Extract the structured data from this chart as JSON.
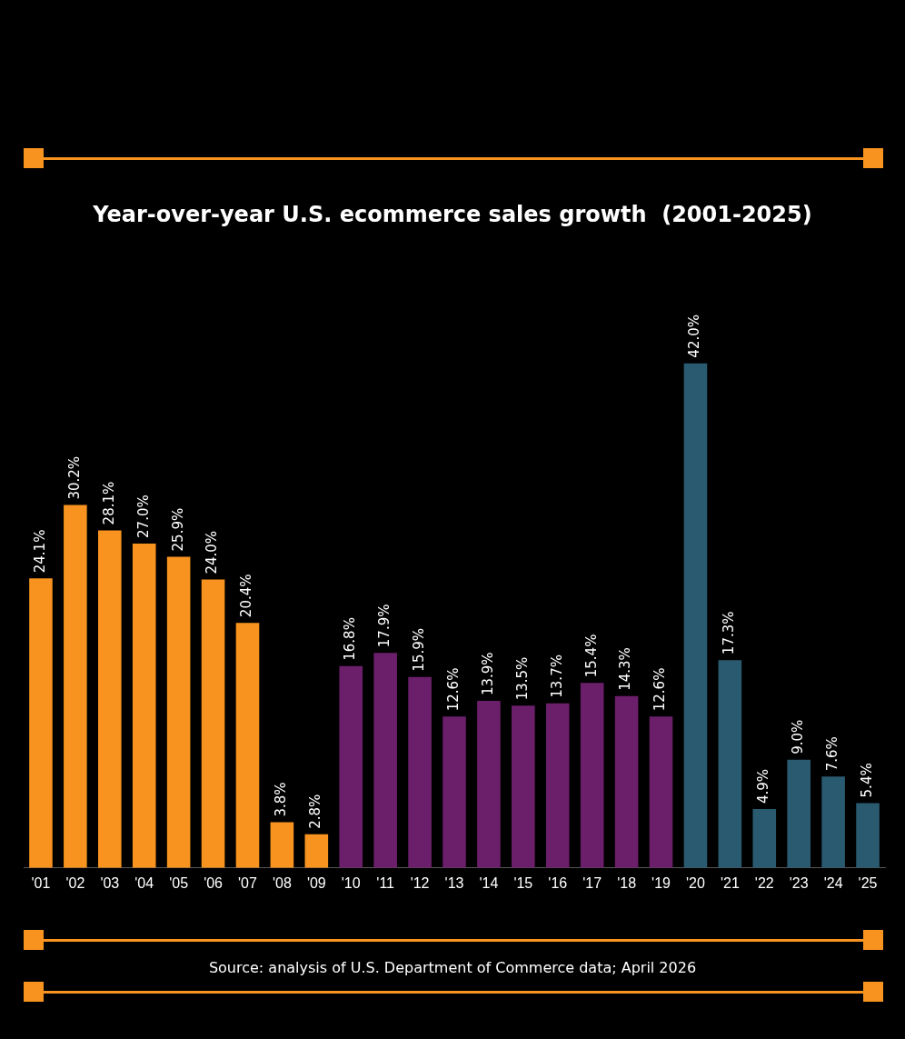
{
  "chart_data": {
    "type": "bar",
    "title": "Year-over-year U.S. ecommerce sales growth  (2001-2025)",
    "categories": [
      "'01",
      "'02",
      "'03",
      "'04",
      "'05",
      "'06",
      "'07",
      "'08",
      "'09",
      "'10",
      "'11",
      "'12",
      "'13",
      "'14",
      "'15",
      "'16",
      "'17",
      "'18",
      "'19",
      "'20",
      "'21",
      "'22",
      "'23",
      "'24",
      "'25"
    ],
    "values": [
      24.1,
      30.2,
      28.1,
      27.0,
      25.9,
      24.0,
      20.4,
      3.8,
      2.8,
      16.8,
      17.9,
      15.9,
      12.6,
      13.9,
      13.5,
      13.7,
      15.4,
      14.3,
      12.6,
      42.0,
      17.3,
      4.9,
      9.0,
      7.6,
      5.4
    ],
    "value_labels": [
      "24.1%",
      "30.2%",
      "28.1%",
      "27.0%",
      "25.9%",
      "24.0%",
      "20.4%",
      "3.8%",
      "2.8%",
      "16.8%",
      "17.9%",
      "15.9%",
      "12.6%",
      "13.9%",
      "13.5%",
      "13.7%",
      "15.4%",
      "14.3%",
      "12.6%",
      "42.0%",
      "17.3%",
      "4.9%",
      "9.0%",
      "7.6%",
      "5.4%"
    ],
    "colors": [
      "#f7931e",
      "#f7931e",
      "#f7931e",
      "#f7931e",
      "#f7931e",
      "#f7931e",
      "#f7931e",
      "#f7931e",
      "#f7931e",
      "#6b1f6b",
      "#6b1f6b",
      "#6b1f6b",
      "#6b1f6b",
      "#6b1f6b",
      "#6b1f6b",
      "#6b1f6b",
      "#6b1f6b",
      "#6b1f6b",
      "#6b1f6b",
      "#2a5a70",
      "#2a5a70",
      "#2a5a70",
      "#2a5a70",
      "#2a5a70",
      "#2a5a70"
    ],
    "legend": false,
    "annotations": [
      "Source: analysis of U.S. Department of Commerce data; April 2026"
    ]
  }
}
